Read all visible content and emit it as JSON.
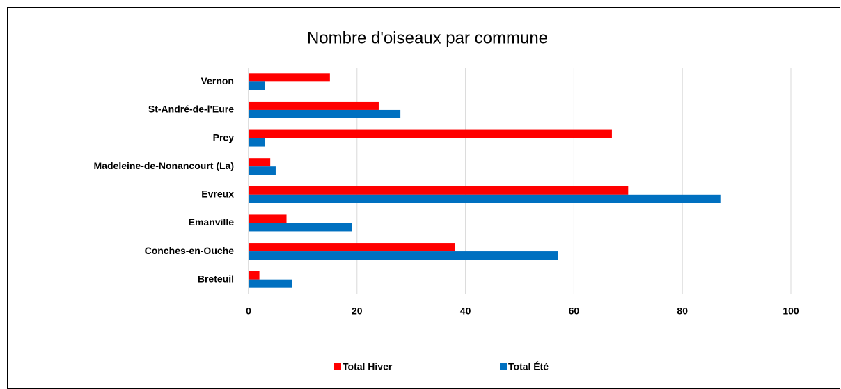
{
  "chart_data": {
    "type": "bar",
    "orientation": "horizontal",
    "title": "Nombre d'oiseaux par commune",
    "categories": [
      "Vernon",
      "St-André-de-l'Eure",
      "Prey",
      "Madeleine-de-Nonancourt (La)",
      "Evreux",
      "Emanville",
      "Conches-en-Ouche",
      "Breteuil"
    ],
    "series": [
      {
        "name": "Total Hiver",
        "color": "#ff0000",
        "values": [
          15,
          24,
          67,
          4,
          70,
          7,
          38,
          2
        ]
      },
      {
        "name": "Total Été",
        "color": "#0070c0",
        "values": [
          3,
          28,
          3,
          5,
          87,
          19,
          57,
          8
        ]
      }
    ],
    "xlim": [
      0,
      100
    ],
    "xticks": [
      0,
      20,
      40,
      60,
      80,
      100
    ],
    "grid": true,
    "legend": "bottom"
  }
}
